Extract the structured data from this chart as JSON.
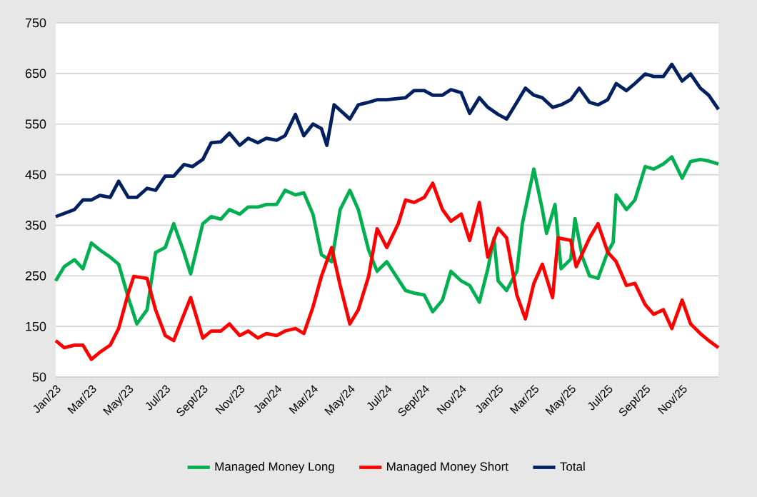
{
  "chart_data": {
    "type": "line",
    "legend": "bottom",
    "grid": "y",
    "line_style": "solid",
    "xlim": [
      "2023-01-01",
      "2025-12-31"
    ],
    "xticks": [
      {
        "value": "2023-01-01",
        "label": "Jan/23"
      },
      {
        "value": "2023-03-01",
        "label": "Mar/23"
      },
      {
        "value": "2023-05-01",
        "label": "May/23"
      },
      {
        "value": "2023-07-01",
        "label": "Jul/23"
      },
      {
        "value": "2023-09-01",
        "label": "Sept/23"
      },
      {
        "value": "2023-11-01",
        "label": "Nov/23"
      },
      {
        "value": "2024-01-01",
        "label": "Jan/24"
      },
      {
        "value": "2024-03-01",
        "label": "Mar/24"
      },
      {
        "value": "2024-05-01",
        "label": "May/24"
      },
      {
        "value": "2024-07-01",
        "label": "Jul/24"
      },
      {
        "value": "2024-09-01",
        "label": "Sept/24"
      },
      {
        "value": "2024-11-01",
        "label": "Nov/24"
      },
      {
        "value": "2025-01-01",
        "label": "Jan/25"
      },
      {
        "value": "2025-03-01",
        "label": "Mar/25"
      },
      {
        "value": "2025-05-01",
        "label": "May/25"
      },
      {
        "value": "2025-07-01",
        "label": "Jul/25"
      },
      {
        "value": "2025-09-01",
        "label": "Sept/25"
      },
      {
        "value": "2025-11-01",
        "label": "Nov/25"
      }
    ],
    "ylim": [
      50,
      750
    ],
    "yticks": [
      50,
      150,
      250,
      350,
      450,
      550,
      650,
      750
    ],
    "series": [
      {
        "name": "Managed Money Long",
        "color": "#00b050",
        "x": [
          "2023-01-01",
          "2023-01-15",
          "2023-02-01",
          "2023-02-15",
          "2023-03-01",
          "2023-03-15",
          "2023-04-01",
          "2023-04-15",
          "2023-05-01",
          "2023-05-15",
          "2023-06-01",
          "2023-06-15",
          "2023-07-01",
          "2023-07-15",
          "2023-08-01",
          "2023-08-12",
          "2023-09-01",
          "2023-09-15",
          "2023-10-01",
          "2023-10-15",
          "2023-11-01",
          "2023-11-15",
          "2023-12-01",
          "2023-12-15",
          "2024-01-01",
          "2024-01-15",
          "2024-02-01",
          "2024-02-15",
          "2024-03-01",
          "2024-03-15",
          "2024-04-01",
          "2024-04-15",
          "2024-05-01",
          "2024-05-15",
          "2024-06-01",
          "2024-06-15",
          "2024-07-01",
          "2024-08-01",
          "2024-08-15",
          "2024-09-01",
          "2024-09-15",
          "2024-10-01",
          "2024-10-15",
          "2024-11-01",
          "2024-11-15",
          "2024-12-01",
          "2024-12-15",
          "2024-12-25",
          "2025-01-01",
          "2025-01-15",
          "2025-02-01",
          "2025-02-10",
          "2025-02-20",
          "2025-03-01",
          "2025-03-15",
          "2025-03-22",
          "2025-04-05",
          "2025-04-15",
          "2025-05-01",
          "2025-05-08",
          "2025-05-20",
          "2025-06-01",
          "2025-06-15",
          "2025-07-01",
          "2025-07-10",
          "2025-07-15",
          "2025-08-01",
          "2025-08-15",
          "2025-09-01",
          "2025-09-15",
          "2025-10-01",
          "2025-10-15",
          "2025-11-01",
          "2025-11-15",
          "2025-12-01",
          "2025-12-15",
          "2025-12-31"
        ],
        "values": [
          240,
          268,
          282,
          264,
          315,
          301,
          287,
          273,
          207,
          155,
          183,
          296,
          306,
          353,
          296,
          254,
          353,
          367,
          362,
          381,
          372,
          386,
          386,
          391,
          391,
          419,
          410,
          414,
          372,
          292,
          278,
          381,
          419,
          381,
          301,
          259,
          278,
          221,
          216,
          212,
          179,
          202,
          259,
          240,
          231,
          198,
          264,
          325,
          240,
          221,
          259,
          353,
          410,
          461,
          381,
          334,
          391,
          264,
          283,
          363,
          288,
          250,
          245,
          297,
          316,
          410,
          381,
          400,
          466,
          461,
          471,
          485,
          443,
          476,
          480,
          477,
          471
        ]
      },
      {
        "name": "Managed Money Short",
        "color": "#ff0000",
        "x": [
          "2023-01-01",
          "2023-01-15",
          "2023-02-01",
          "2023-02-15",
          "2023-03-01",
          "2023-03-15",
          "2023-04-01",
          "2023-04-15",
          "2023-05-01",
          "2023-05-10",
          "2023-06-01",
          "2023-06-15",
          "2023-07-01",
          "2023-07-15",
          "2023-08-01",
          "2023-08-12",
          "2023-09-01",
          "2023-09-15",
          "2023-10-01",
          "2023-10-15",
          "2023-11-01",
          "2023-11-15",
          "2023-12-01",
          "2023-12-15",
          "2024-01-01",
          "2024-01-15",
          "2024-02-01",
          "2024-02-15",
          "2024-03-01",
          "2024-03-15",
          "2024-04-01",
          "2024-04-15",
          "2024-05-01",
          "2024-05-15",
          "2024-06-01",
          "2024-06-15",
          "2024-07-01",
          "2024-07-20",
          "2024-08-01",
          "2024-08-15",
          "2024-09-01",
          "2024-09-15",
          "2024-10-01",
          "2024-10-15",
          "2024-11-01",
          "2024-11-15",
          "2024-12-01",
          "2024-12-15",
          "2025-01-01",
          "2025-01-15",
          "2025-02-01",
          "2025-02-15",
          "2025-03-01",
          "2025-03-15",
          "2025-04-01",
          "2025-04-10",
          "2025-05-01",
          "2025-05-10",
          "2025-06-01",
          "2025-06-15",
          "2025-07-01",
          "2025-07-15",
          "2025-08-01",
          "2025-08-15",
          "2025-09-01",
          "2025-09-15",
          "2025-10-01",
          "2025-10-15",
          "2025-11-01",
          "2025-11-15",
          "2025-12-01",
          "2025-12-15",
          "2025-12-31"
        ],
        "values": [
          122,
          108,
          113,
          113,
          85,
          99,
          113,
          146,
          216,
          249,
          245,
          183,
          132,
          122,
          174,
          207,
          127,
          141,
          141,
          155,
          132,
          141,
          127,
          136,
          132,
          141,
          146,
          136,
          188,
          249,
          306,
          231,
          155,
          183,
          249,
          343,
          306,
          353,
          400,
          395,
          405,
          433,
          381,
          358,
          372,
          320,
          395,
          287,
          344,
          325,
          212,
          165,
          235,
          273,
          207,
          325,
          320,
          268,
          325,
          353,
          297,
          278,
          231,
          235,
          193,
          174,
          183,
          146,
          202,
          155,
          136,
          122,
          108
        ]
      },
      {
        "name": "Total",
        "color": "#002060",
        "x": [
          "2023-01-01",
          "2023-02-01",
          "2023-02-15",
          "2023-03-01",
          "2023-03-15",
          "2023-04-01",
          "2023-04-15",
          "2023-05-01",
          "2023-05-15",
          "2023-06-01",
          "2023-06-15",
          "2023-07-01",
          "2023-07-15",
          "2023-08-01",
          "2023-08-15",
          "2023-09-01",
          "2023-09-15",
          "2023-10-01",
          "2023-10-15",
          "2023-11-01",
          "2023-11-15",
          "2023-12-01",
          "2023-12-15",
          "2024-01-01",
          "2024-01-15",
          "2024-02-01",
          "2024-02-15",
          "2024-03-01",
          "2024-03-15",
          "2024-03-24",
          "2024-04-05",
          "2024-05-01",
          "2024-05-15",
          "2024-06-01",
          "2024-06-15",
          "2024-07-01",
          "2024-08-01",
          "2024-08-15",
          "2024-09-01",
          "2024-09-15",
          "2024-10-01",
          "2024-10-15",
          "2024-11-01",
          "2024-11-15",
          "2024-12-01",
          "2024-12-15",
          "2025-01-01",
          "2025-01-15",
          "2025-02-01",
          "2025-02-15",
          "2025-03-01",
          "2025-03-15",
          "2025-04-01",
          "2025-04-15",
          "2025-05-01",
          "2025-05-15",
          "2025-06-01",
          "2025-06-15",
          "2025-07-01",
          "2025-07-15",
          "2025-08-01",
          "2025-08-15",
          "2025-09-01",
          "2025-09-15",
          "2025-10-01",
          "2025-10-15",
          "2025-11-01",
          "2025-11-15",
          "2025-12-01",
          "2025-12-15",
          "2025-12-31"
        ],
        "values": [
          367,
          381,
          400,
          400,
          409,
          405,
          437,
          405,
          405,
          423,
          419,
          447,
          447,
          470,
          466,
          480,
          513,
          515,
          532,
          508,
          522,
          513,
          522,
          518,
          527,
          569,
          527,
          550,
          541,
          508,
          588,
          560,
          588,
          593,
          598,
          598,
          602,
          616,
          616,
          607,
          607,
          618,
          612,
          571,
          602,
          583,
          569,
          560,
          593,
          621,
          607,
          602,
          583,
          588,
          598,
          621,
          593,
          588,
          598,
          630,
          616,
          630,
          649,
          644,
          644,
          668,
          635,
          649,
          621,
          607,
          579
        ]
      }
    ]
  }
}
